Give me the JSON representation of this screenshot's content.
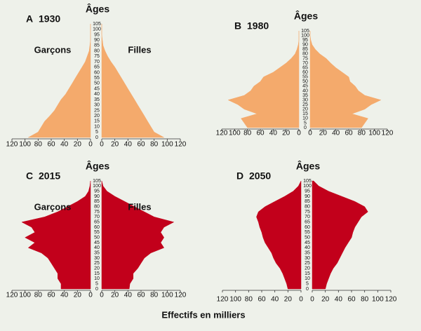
{
  "chart_data": [
    {
      "type": "pyramid",
      "label": "A",
      "title": "1930",
      "ylabel": "Âges",
      "categories": [
        0,
        5,
        10,
        15,
        20,
        25,
        30,
        35,
        40,
        45,
        50,
        55,
        60,
        65,
        70,
        75,
        80,
        85,
        90,
        95,
        100,
        105
      ],
      "series": [
        {
          "name": "Garçons",
          "color": "#f4aa6c",
          "values": [
            95,
            80,
            75,
            70,
            62,
            55,
            50,
            45,
            38,
            33,
            28,
            23,
            18,
            13,
            8,
            5,
            2,
            1,
            0,
            0,
            0,
            0
          ]
        },
        {
          "name": "Filles",
          "color": "#f4aa6c",
          "values": [
            95,
            80,
            75,
            70,
            65,
            60,
            55,
            50,
            45,
            40,
            35,
            30,
            25,
            20,
            14,
            9,
            5,
            2,
            1,
            0,
            0,
            0
          ]
        }
      ],
      "xlim": [
        0,
        120
      ],
      "xticks": [
        0,
        20,
        40,
        60,
        80,
        100,
        120
      ]
    },
    {
      "type": "pyramid",
      "label": "B",
      "title": "1980",
      "ylabel": "Âges",
      "categories": [
        0,
        5,
        10,
        15,
        20,
        25,
        30,
        35,
        40,
        45,
        50,
        55,
        60,
        65,
        70,
        75,
        80,
        85,
        90,
        95,
        100,
        105
      ],
      "series": [
        {
          "color": "#f4aa6c",
          "values": [
            80,
            85,
            90,
            65,
            85,
            95,
            110,
            85,
            75,
            70,
            60,
            55,
            40,
            30,
            20,
            12,
            6,
            3,
            1,
            0,
            0,
            0
          ]
        },
        {
          "color": "#f4aa6c",
          "values": [
            80,
            85,
            90,
            65,
            85,
            95,
            110,
            85,
            75,
            70,
            62,
            60,
            50,
            40,
            32,
            25,
            15,
            8,
            3,
            1,
            0,
            0
          ]
        }
      ],
      "xlim": [
        0,
        120
      ],
      "xticks": [
        0,
        20,
        40,
        60,
        80,
        100,
        120
      ]
    },
    {
      "type": "pyramid",
      "label": "C",
      "title": "2015",
      "ylabel": "Âges",
      "categories": [
        0,
        5,
        10,
        15,
        20,
        25,
        30,
        35,
        40,
        45,
        50,
        55,
        60,
        65,
        70,
        75,
        80,
        85,
        90,
        95,
        100,
        105
      ],
      "series": [
        {
          "name": "Garçons",
          "color": "#c2001b",
          "values": [
            45,
            45,
            50,
            50,
            55,
            60,
            65,
            75,
            95,
            85,
            100,
            85,
            90,
            105,
            70,
            50,
            35,
            20,
            8,
            3,
            1,
            0
          ]
        },
        {
          "name": "Filles",
          "color": "#c2001b",
          "values": [
            42,
            43,
            48,
            48,
            55,
            60,
            65,
            75,
            95,
            90,
            95,
            90,
            95,
            110,
            80,
            65,
            50,
            35,
            20,
            8,
            2,
            0
          ]
        }
      ],
      "xlim": [
        0,
        120
      ],
      "xticks": [
        0,
        20,
        40,
        60,
        80,
        100,
        120
      ]
    },
    {
      "type": "pyramid",
      "label": "D",
      "title": "2050",
      "ylabel": "Âges",
      "categories": [
        0,
        5,
        10,
        15,
        20,
        25,
        30,
        35,
        40,
        45,
        50,
        55,
        60,
        65,
        70,
        75,
        80,
        85,
        90,
        95,
        100,
        105
      ],
      "series": [
        {
          "color": "#c2001b",
          "values": [
            20,
            22,
            25,
            28,
            32,
            38,
            42,
            45,
            50,
            55,
            58,
            60,
            63,
            65,
            68,
            65,
            55,
            40,
            25,
            12,
            4,
            0
          ]
        },
        {
          "color": "#c2001b",
          "values": [
            20,
            22,
            25,
            28,
            32,
            38,
            42,
            46,
            50,
            55,
            60,
            62,
            65,
            70,
            75,
            85,
            80,
            65,
            45,
            25,
            10,
            2
          ]
        }
      ],
      "xlim": [
        0,
        120
      ],
      "xticks": [
        0,
        20,
        40,
        60,
        80,
        100,
        120
      ]
    }
  ],
  "xlabel": "Effectifs en milliers"
}
